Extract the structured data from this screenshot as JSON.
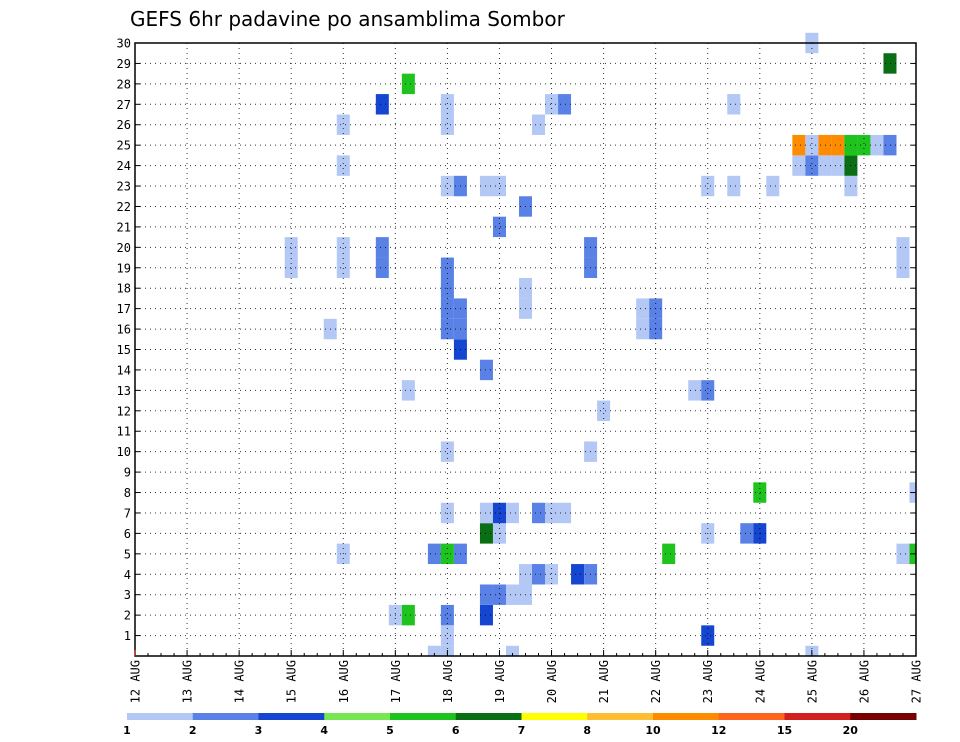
{
  "chart_data": {
    "type": "heatmap",
    "title": "GEFS 6hr padavine po ansamblima Sombor",
    "xlabel": "",
    "ylabel": "",
    "x_ticks": [
      "12 AUG",
      "13 AUG",
      "14 AUG",
      "15 AUG",
      "16 AUG",
      "17 AUG",
      "18 AUG",
      "19 AUG",
      "20 AUG",
      "21 AUG",
      "22 AUG",
      "23 AUG",
      "24 AUG",
      "25 AUG",
      "26 AUG",
      "27 AUG"
    ],
    "xlim_days": [
      12,
      27
    ],
    "ylim": [
      0,
      30
    ],
    "y_ticks": [
      1,
      2,
      3,
      4,
      5,
      6,
      7,
      8,
      9,
      10,
      11,
      12,
      13,
      14,
      15,
      16,
      17,
      18,
      19,
      20,
      21,
      22,
      23,
      24,
      25,
      26,
      27,
      28,
      29,
      30
    ],
    "grid": true,
    "legend": {
      "placement": "bottom",
      "labels": [
        "1",
        "2",
        "3",
        "4",
        "5",
        "6",
        "7",
        "8",
        "10",
        "12",
        "15",
        "20"
      ],
      "colors": [
        "#b4c8f5",
        "#5a82e6",
        "#1446d2",
        "#78e650",
        "#1ec31e",
        "#0a6e14",
        "#ffff00",
        "#ffbe32",
        "#ff8c00",
        "#ff641e",
        "#d21e1e",
        "#780000"
      ]
    },
    "cells_note_units": "x = day of August (6-hour steps), y = ensemble member, c = color class index",
    "cells": [
      {
        "x": 17.0,
        "y": 2,
        "c": 0
      },
      {
        "x": 17.25,
        "y": 2,
        "c": 4
      },
      {
        "x": 18.0,
        "y": 2,
        "c": 1
      },
      {
        "x": 18.75,
        "y": 2,
        "c": 2
      },
      {
        "x": 18.75,
        "y": 3,
        "c": 1
      },
      {
        "x": 19.0,
        "y": 3,
        "c": 1
      },
      {
        "x": 19.25,
        "y": 3,
        "c": 0
      },
      {
        "x": 19.5,
        "y": 3,
        "c": 0
      },
      {
        "x": 19.5,
        "y": 4,
        "c": 0
      },
      {
        "x": 19.75,
        "y": 4,
        "c": 1
      },
      {
        "x": 20.0,
        "y": 4,
        "c": 0
      },
      {
        "x": 20.5,
        "y": 4,
        "c": 2
      },
      {
        "x": 20.75,
        "y": 4,
        "c": 1
      },
      {
        "x": 16.0,
        "y": 5,
        "c": 0
      },
      {
        "x": 17.75,
        "y": 5,
        "c": 1
      },
      {
        "x": 18.0,
        "y": 5,
        "c": 4
      },
      {
        "x": 18.25,
        "y": 5,
        "c": 1
      },
      {
        "x": 22.25,
        "y": 5,
        "c": 4
      },
      {
        "x": 26.75,
        "y": 5,
        "c": 0
      },
      {
        "x": 27.0,
        "y": 5,
        "c": 4
      },
      {
        "x": 18.75,
        "y": 6,
        "c": 5
      },
      {
        "x": 19.0,
        "y": 6,
        "c": 0
      },
      {
        "x": 23.0,
        "y": 6,
        "c": 0
      },
      {
        "x": 23.75,
        "y": 6,
        "c": 1
      },
      {
        "x": 24.0,
        "y": 6,
        "c": 2
      },
      {
        "x": 18.0,
        "y": 7,
        "c": 0
      },
      {
        "x": 18.75,
        "y": 7,
        "c": 0
      },
      {
        "x": 19.0,
        "y": 7,
        "c": 2
      },
      {
        "x": 19.25,
        "y": 7,
        "c": 0
      },
      {
        "x": 19.75,
        "y": 7,
        "c": 1
      },
      {
        "x": 20.0,
        "y": 7,
        "c": 0
      },
      {
        "x": 20.25,
        "y": 7,
        "c": 0
      },
      {
        "x": 24.0,
        "y": 8,
        "c": 4
      },
      {
        "x": 27.0,
        "y": 8,
        "c": 0
      },
      {
        "x": 18.0,
        "y": 10,
        "c": 0
      },
      {
        "x": 20.75,
        "y": 10,
        "c": 0
      },
      {
        "x": 21.0,
        "y": 12,
        "c": 0
      },
      {
        "x": 17.25,
        "y": 13,
        "c": 0
      },
      {
        "x": 22.75,
        "y": 13,
        "c": 0
      },
      {
        "x": 23.0,
        "y": 13,
        "c": 1
      },
      {
        "x": 18.75,
        "y": 14,
        "c": 1
      },
      {
        "x": 18.25,
        "y": 15,
        "c": 2
      },
      {
        "x": 15.75,
        "y": 16,
        "c": 0
      },
      {
        "x": 18.0,
        "y": 16,
        "c": 1
      },
      {
        "x": 18.25,
        "y": 16,
        "c": 1
      },
      {
        "x": 21.75,
        "y": 16,
        "c": 0
      },
      {
        "x": 22.0,
        "y": 16,
        "c": 1
      },
      {
        "x": 18.0,
        "y": 17,
        "c": 1
      },
      {
        "x": 18.25,
        "y": 17,
        "c": 1
      },
      {
        "x": 19.5,
        "y": 17,
        "c": 0
      },
      {
        "x": 21.75,
        "y": 17,
        "c": 0
      },
      {
        "x": 22.0,
        "y": 17,
        "c": 1
      },
      {
        "x": 18.0,
        "y": 18,
        "c": 1
      },
      {
        "x": 19.5,
        "y": 18,
        "c": 0
      },
      {
        "x": 15.0,
        "y": 19,
        "c": 0
      },
      {
        "x": 16.0,
        "y": 19,
        "c": 0
      },
      {
        "x": 16.75,
        "y": 19,
        "c": 1
      },
      {
        "x": 18.0,
        "y": 19,
        "c": 1
      },
      {
        "x": 20.75,
        "y": 19,
        "c": 1
      },
      {
        "x": 26.75,
        "y": 19,
        "c": 0
      },
      {
        "x": 15.0,
        "y": 20,
        "c": 0
      },
      {
        "x": 16.0,
        "y": 20,
        "c": 0
      },
      {
        "x": 16.75,
        "y": 20,
        "c": 1
      },
      {
        "x": 20.75,
        "y": 20,
        "c": 1
      },
      {
        "x": 26.75,
        "y": 20,
        "c": 0
      },
      {
        "x": 19.0,
        "y": 21,
        "c": 1
      },
      {
        "x": 19.5,
        "y": 22,
        "c": 1
      },
      {
        "x": 18.0,
        "y": 23,
        "c": 0
      },
      {
        "x": 18.25,
        "y": 23,
        "c": 1
      },
      {
        "x": 18.75,
        "y": 23,
        "c": 0
      },
      {
        "x": 19.0,
        "y": 23,
        "c": 0
      },
      {
        "x": 23.0,
        "y": 23,
        "c": 0
      },
      {
        "x": 23.5,
        "y": 23,
        "c": 0
      },
      {
        "x": 24.25,
        "y": 23,
        "c": 0
      },
      {
        "x": 25.75,
        "y": 23,
        "c": 0
      },
      {
        "x": 16.0,
        "y": 24,
        "c": 0
      },
      {
        "x": 24.75,
        "y": 24,
        "c": 0
      },
      {
        "x": 25.0,
        "y": 24,
        "c": 1
      },
      {
        "x": 25.25,
        "y": 24,
        "c": 0
      },
      {
        "x": 25.5,
        "y": 24,
        "c": 0
      },
      {
        "x": 25.75,
        "y": 24,
        "c": 5
      },
      {
        "x": 24.75,
        "y": 25,
        "c": 8
      },
      {
        "x": 25.0,
        "y": 25,
        "c": 0
      },
      {
        "x": 25.25,
        "y": 25,
        "c": 8
      },
      {
        "x": 25.5,
        "y": 25,
        "c": 8
      },
      {
        "x": 25.75,
        "y": 25,
        "c": 4
      },
      {
        "x": 26.0,
        "y": 25,
        "c": 4
      },
      {
        "x": 26.25,
        "y": 25,
        "c": 0
      },
      {
        "x": 26.5,
        "y": 25,
        "c": 1
      },
      {
        "x": 16.0,
        "y": 26,
        "c": 0
      },
      {
        "x": 18.0,
        "y": 26,
        "c": 0
      },
      {
        "x": 19.75,
        "y": 26,
        "c": 0
      },
      {
        "x": 16.75,
        "y": 27,
        "c": 2
      },
      {
        "x": 18.0,
        "y": 27,
        "c": 0
      },
      {
        "x": 20.0,
        "y": 27,
        "c": 0
      },
      {
        "x": 20.25,
        "y": 27,
        "c": 1
      },
      {
        "x": 23.5,
        "y": 27,
        "c": 0
      },
      {
        "x": 17.25,
        "y": 28,
        "c": 4
      },
      {
        "x": 26.5,
        "y": 29,
        "c": 5
      },
      {
        "x": 25.0,
        "y": 30,
        "c": 0
      },
      {
        "x": 23.0,
        "y": 1,
        "c": 2
      },
      {
        "x": 18.0,
        "y": 1,
        "c": 0
      },
      {
        "x": 17.75,
        "y": 0,
        "c": 0
      },
      {
        "x": 18.0,
        "y": 0,
        "c": 0
      },
      {
        "x": 19.25,
        "y": 0,
        "c": 0
      },
      {
        "x": 25.0,
        "y": 0,
        "c": 0
      }
    ]
  }
}
